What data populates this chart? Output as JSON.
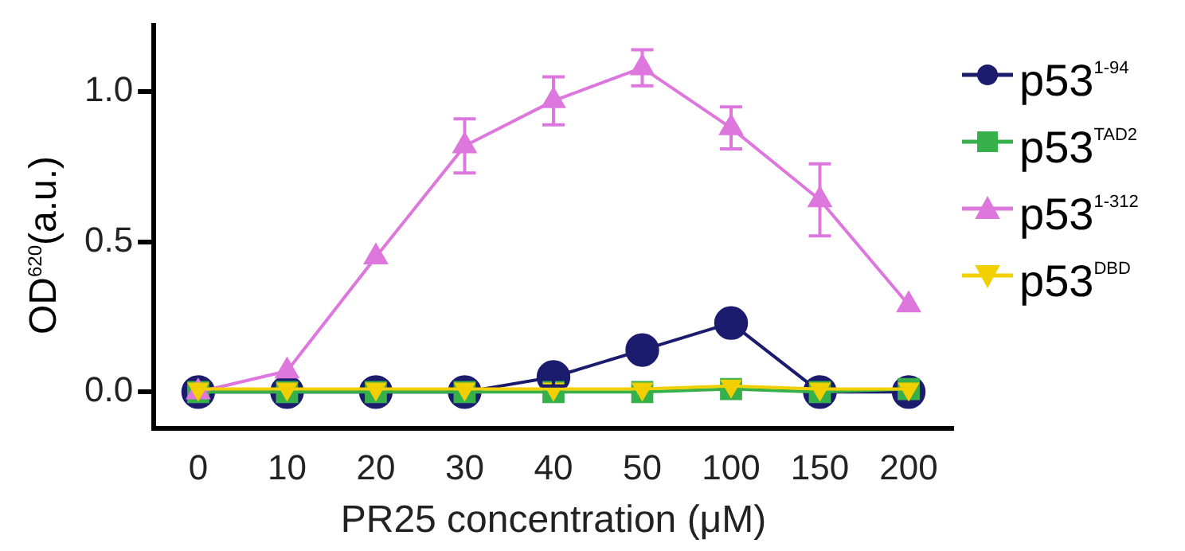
{
  "chart_data": {
    "type": "line",
    "xlabel": "PR25 concentration (μM)",
    "ylabel": "OD$^{620}$(a.u.)",
    "categories": [
      "0",
      "10",
      "20",
      "30",
      "40",
      "50",
      "100",
      "150",
      "200"
    ],
    "ylim": [
      -0.12,
      1.22
    ],
    "yticks": [
      {
        "value": 0,
        "label": "0.0"
      },
      {
        "value": 0.5,
        "label": "0.5"
      },
      {
        "value": 1,
        "label": "1.0"
      }
    ],
    "grid": false,
    "legend": "right",
    "series": [
      {
        "name": "p53$^{1-94}$",
        "color": "#1c1c6e",
        "marker": "circle",
        "values": [
          0,
          0,
          0,
          0,
          0.05,
          0.14,
          0.23,
          0,
          0
        ],
        "errors": [
          null,
          null,
          null,
          null,
          0.03,
          0.02,
          null,
          null,
          null
        ]
      },
      {
        "name": "p53$^{TAD2}$",
        "color": "#36b04a",
        "marker": "square",
        "values": [
          0,
          0,
          0,
          0,
          0,
          0,
          0.01,
          0,
          0.01
        ]
      },
      {
        "name": "p53$^{1-312}$",
        "color": "#dd77dd",
        "marker": "triangle",
        "values": [
          0,
          0.07,
          0.45,
          0.82,
          0.97,
          1.08,
          0.88,
          0.64,
          0.29
        ],
        "errors": [
          null,
          null,
          null,
          0.09,
          0.08,
          0.06,
          0.07,
          0.12,
          null
        ]
      },
      {
        "name": "p53$^{DBD}$",
        "color": "#f2cf00",
        "marker": "triangle-down",
        "values": [
          0.01,
          0.01,
          0.01,
          0.01,
          0.01,
          0.01,
          0.02,
          0.01,
          0.01
        ]
      }
    ]
  }
}
